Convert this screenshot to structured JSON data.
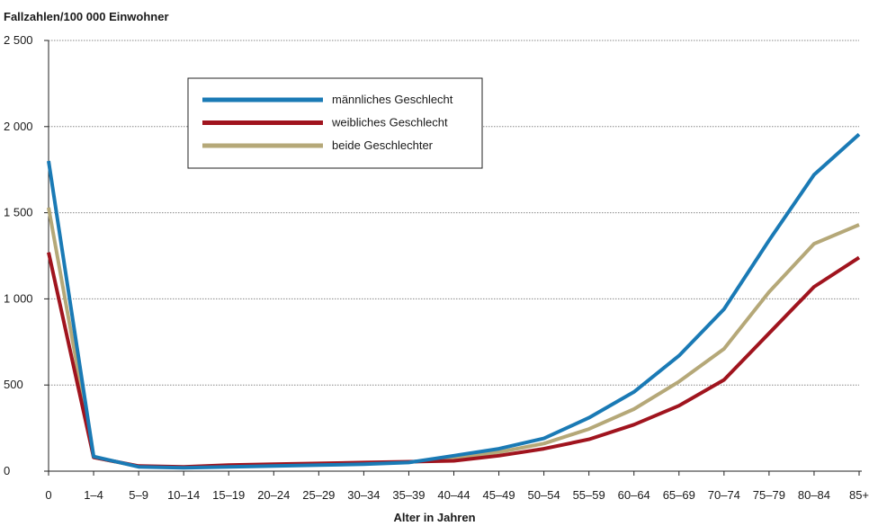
{
  "chart_data": {
    "type": "line",
    "ylabel": "Fallzahlen/100 000 Einwohner",
    "xlabel": "Alter in Jahren",
    "categories": [
      "0",
      "1–4",
      "5–9",
      "10–14",
      "15–19",
      "20–24",
      "25–29",
      "30–34",
      "35–39",
      "40–44",
      "45–49",
      "50–54",
      "55–59",
      "60–64",
      "65–69",
      "70–74",
      "75–79",
      "80–84",
      "85+"
    ],
    "ylim": [
      0,
      2500
    ],
    "yticks": [
      0,
      500,
      1000,
      1500,
      2000,
      2500
    ],
    "ytick_labels": [
      "0",
      "500",
      "1 000",
      "1 500",
      "2 000",
      "2 500"
    ],
    "grid": true,
    "legend_position": "top-left",
    "series": [
      {
        "name": "männliches Geschlecht",
        "color": "#1a7ab5",
        "values": [
          1800,
          85,
          25,
          20,
          25,
          30,
          35,
          40,
          50,
          90,
          130,
          190,
          310,
          460,
          670,
          940,
          1340,
          1720,
          1955
        ]
      },
      {
        "name": "weibliches Geschlecht",
        "color": "#a0141e",
        "values": [
          1270,
          80,
          30,
          25,
          35,
          40,
          45,
          50,
          55,
          60,
          90,
          130,
          185,
          270,
          380,
          530,
          800,
          1070,
          1240
        ]
      },
      {
        "name": "beide Geschlechter",
        "color": "#b5a878",
        "values": [
          1530,
          80,
          28,
          22,
          30,
          35,
          40,
          45,
          52,
          75,
          110,
          160,
          245,
          360,
          520,
          710,
          1040,
          1320,
          1430
        ]
      }
    ]
  }
}
